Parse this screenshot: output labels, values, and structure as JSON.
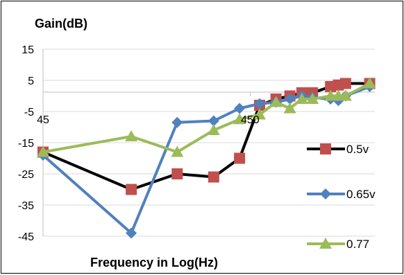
{
  "chart_data": {
    "type": "line",
    "xlabel": "Frequency in Log(Hz)",
    "ylabel": "Gain(dB)",
    "x_scale": "log",
    "x_tick_labels": [
      "45",
      "450"
    ],
    "y_ticks": [
      15,
      5,
      -5,
      -15,
      -25,
      -35,
      -45
    ],
    "ylim": [
      -45,
      15
    ],
    "xlim": [
      45,
      1800
    ],
    "grid": "horizontal",
    "legend_position": "right",
    "series": [
      {
        "name": "0.5v",
        "color": "#c0504d",
        "marker": "square",
        "line_color": "#000000",
        "points": [
          [
            45,
            -18
          ],
          [
            120,
            -30
          ],
          [
            200,
            -25
          ],
          [
            300,
            -26
          ],
          [
            400,
            -20
          ],
          [
            500,
            -3
          ],
          [
            600,
            -1
          ],
          [
            700,
            0
          ],
          [
            800,
            1
          ],
          [
            900,
            1
          ],
          [
            1100,
            3
          ],
          [
            1200,
            3.5
          ],
          [
            1300,
            4
          ],
          [
            1700,
            4
          ]
        ]
      },
      {
        "name": "0.65v",
        "color": "#4f81bd",
        "marker": "diamond",
        "line_color": "#4f81bd",
        "points": [
          [
            45,
            -19
          ],
          [
            120,
            -44
          ],
          [
            200,
            -8.5
          ],
          [
            300,
            -8
          ],
          [
            400,
            -4
          ],
          [
            500,
            -2.5
          ],
          [
            600,
            -2
          ],
          [
            700,
            -1
          ],
          [
            800,
            0
          ],
          [
            900,
            -0.5
          ],
          [
            1100,
            -1
          ],
          [
            1200,
            -1.5
          ],
          [
            1300,
            0
          ],
          [
            1700,
            3
          ]
        ]
      },
      {
        "name": "0.77",
        "color": "#9bbb59",
        "marker": "triangle",
        "line_color": "#9bbb59",
        "points": [
          [
            45,
            -18
          ],
          [
            120,
            -13
          ],
          [
            200,
            -18
          ],
          [
            300,
            -11
          ],
          [
            400,
            -7.5
          ],
          [
            500,
            -6
          ],
          [
            600,
            -2
          ],
          [
            700,
            -4
          ],
          [
            800,
            -1
          ],
          [
            900,
            -1
          ],
          [
            1100,
            0
          ],
          [
            1200,
            0
          ],
          [
            1300,
            0
          ],
          [
            1700,
            4
          ]
        ]
      }
    ]
  }
}
